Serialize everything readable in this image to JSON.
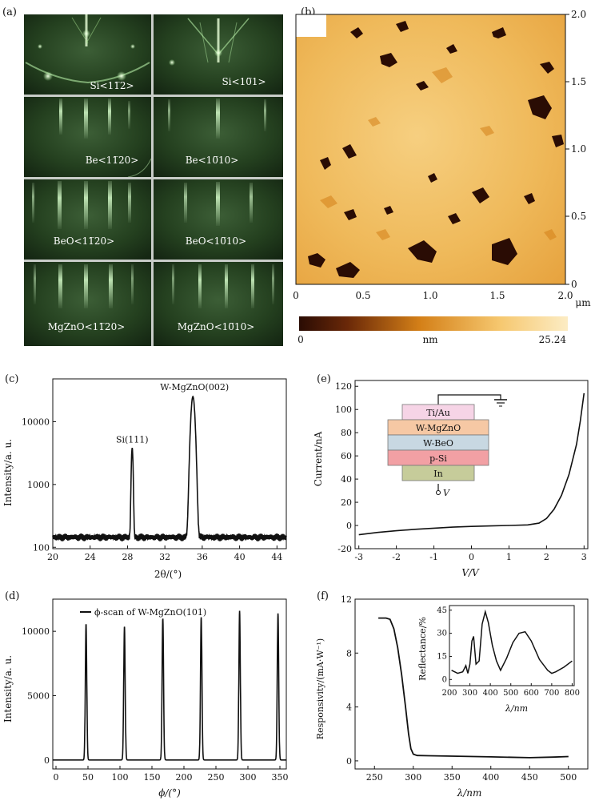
{
  "panels": {
    "a": {
      "letter": "(a)",
      "tiles": [
        {
          "label": "Si<11̅2>"
        },
        {
          "label": "Si<10̅1>"
        },
        {
          "label": "Be<11̅20>"
        },
        {
          "label": "Be<10̅10>"
        },
        {
          "label": "BeO<11̅20>"
        },
        {
          "label": "BeO<10̅10>"
        },
        {
          "label": "MgZnO<11̅20>"
        },
        {
          "label": "MgZnO<10̅10>"
        }
      ]
    },
    "b": {
      "letter": "(b)",
      "unit": "μm",
      "x_ticks": [
        "0",
        "0.5",
        "1.0",
        "1.5",
        "2.0"
      ],
      "y_ticks": [
        "0",
        "0.5",
        "1.0",
        "1.5",
        "2.0"
      ],
      "colorbar": {
        "min": "0",
        "max": "25.24",
        "unit": "nm"
      },
      "colors": {
        "dark": "#2a0c04",
        "mid": "#d48018",
        "light": "#f6e0a0",
        "max": "#fcecc4"
      }
    }
  },
  "chart_data": [
    {
      "panel": "(c)",
      "type": "line",
      "ylabel": "Intensity/a. u.",
      "xlabel": "2θ/(°)",
      "x_ticks": [
        "20",
        "24",
        "28",
        "32",
        "36",
        "40",
        "44"
      ],
      "y_ticks": [
        "100",
        "1000",
        "10000"
      ],
      "xlim": [
        20,
        45
      ],
      "ylim": [
        95,
        48000
      ],
      "y_scale": "log",
      "peaks": [
        {
          "label": "Si(111)",
          "x": 28.5,
          "y": 3700,
          "width": 0.11
        },
        {
          "label": "W-MgZnO(002)",
          "x": 35.0,
          "y": 25000,
          "width": 0.25
        }
      ],
      "baseline": 145
    },
    {
      "panel": "(e)",
      "type": "line",
      "ylabel": "Current/nA",
      "xlabel": "V/V",
      "x_ticks": [
        "-3",
        "-2",
        "-1",
        "0",
        "1",
        "2",
        "3"
      ],
      "y_ticks": [
        "-20",
        "0",
        "20",
        "40",
        "60",
        "80",
        "100",
        "120"
      ],
      "xlim": [
        -3.1,
        3.1
      ],
      "ylim": [
        -20,
        125
      ],
      "x": [
        -3,
        -2.5,
        -2,
        -1.5,
        -1,
        -0.5,
        0,
        0.5,
        1,
        1.5,
        1.8,
        2.0,
        2.2,
        2.4,
        2.6,
        2.8,
        2.9,
        3.0
      ],
      "y": [
        -8,
        -6,
        -4.5,
        -3.3,
        -2.3,
        -1.4,
        -0.8,
        -0.4,
        0,
        0.5,
        2,
        6,
        14,
        26,
        44,
        70,
        90,
        114
      ],
      "inset": {
        "ground_label": "",
        "voltage_label": "V",
        "layers": [
          {
            "name": "Ti/Au",
            "color": "#f6d4e6"
          },
          {
            "name": "W-MgZnO",
            "color": "#f6c8a4"
          },
          {
            "name": "W-BeO",
            "color": "#c8d8e2"
          },
          {
            "name": "p-Si",
            "color": "#f2a0a4"
          },
          {
            "name": "In",
            "color": "#c6cc9a"
          }
        ]
      }
    },
    {
      "panel": "(d)",
      "type": "line",
      "ylabel": "Intensity/a. u.",
      "xlabel": "ϕ/(°)",
      "legend": "ϕ-scan of W-MgZnO(101)",
      "x_ticks": [
        "0",
        "50",
        "100",
        "150",
        "200",
        "250",
        "300",
        "350"
      ],
      "y_ticks": [
        "0",
        "5000",
        "10000"
      ],
      "xlim": [
        -5,
        360
      ],
      "ylim": [
        -700,
        12500
      ],
      "peaks": [
        {
          "x": 47,
          "y": 10600
        },
        {
          "x": 107,
          "y": 10400
        },
        {
          "x": 167,
          "y": 11000
        },
        {
          "x": 227,
          "y": 11100
        },
        {
          "x": 287,
          "y": 11600
        },
        {
          "x": 347,
          "y": 11400
        }
      ]
    },
    {
      "panel": "(f)",
      "type": "line",
      "ylabel": "Responsivity/(mA·W⁻¹)",
      "xlabel": "λ/nm",
      "x_ticks": [
        "250",
        "300",
        "350",
        "400",
        "450",
        "500"
      ],
      "y_ticks": [
        "0",
        "4",
        "8",
        "12"
      ],
      "xlim": [
        225,
        525
      ],
      "ylim": [
        -0.6,
        12
      ],
      "x": [
        255,
        265,
        270,
        275,
        280,
        285,
        290,
        294,
        297,
        300,
        305,
        320,
        350,
        400,
        450,
        480,
        500
      ],
      "y": [
        10.6,
        10.6,
        10.5,
        9.8,
        8.4,
        6.4,
        4.0,
        2.0,
        0.9,
        0.5,
        0.4,
        0.38,
        0.35,
        0.3,
        0.24,
        0.28,
        0.32
      ],
      "inset": {
        "ylabel": "Reflectance/%",
        "xlabel": "λ/nm",
        "x_ticks": [
          "200",
          "300",
          "400",
          "500",
          "600",
          "700",
          "800"
        ],
        "y_ticks": [
          "0",
          "15",
          "30",
          "45"
        ],
        "xlim": [
          200,
          810
        ],
        "ylim": [
          -4,
          48
        ],
        "x": [
          210,
          240,
          265,
          280,
          290,
          300,
          310,
          318,
          330,
          345,
          360,
          375,
          390,
          410,
          430,
          450,
          480,
          510,
          540,
          570,
          600,
          640,
          680,
          700,
          720,
          760,
          800
        ],
        "y": [
          6,
          4,
          5,
          9,
          4,
          10,
          25,
          28,
          10,
          12,
          36,
          44,
          37,
          22,
          12,
          6,
          14,
          24,
          30,
          31,
          25,
          13,
          6,
          4,
          5,
          8,
          12
        ]
      }
    }
  ]
}
